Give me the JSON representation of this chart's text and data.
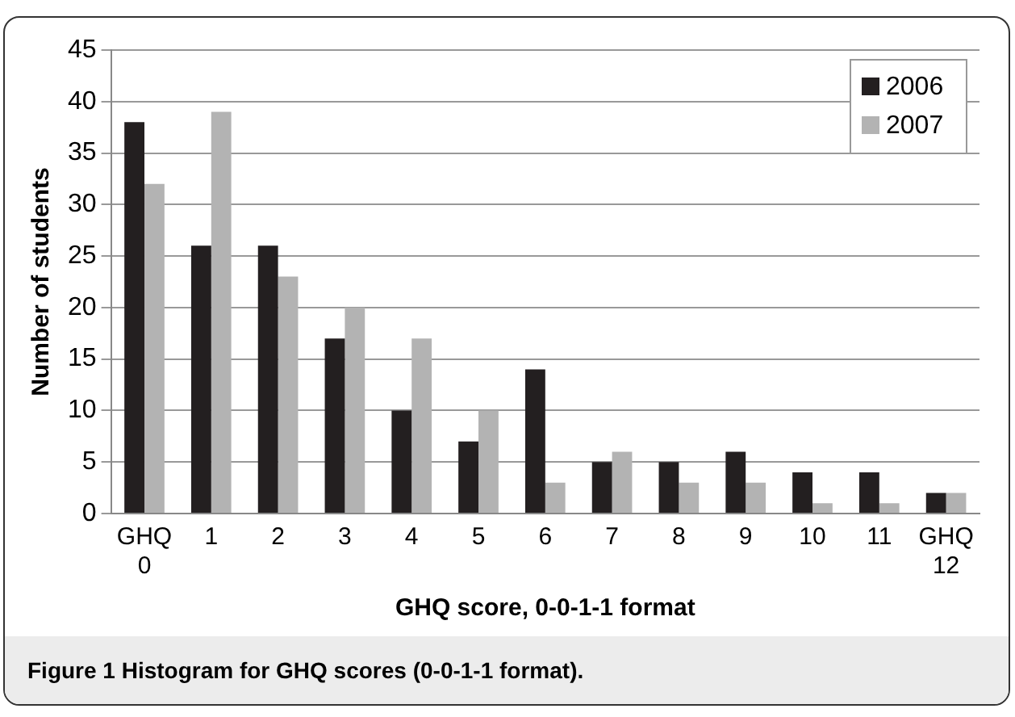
{
  "chart_data": {
    "type": "bar",
    "xlabel": "GHQ score, 0-0-1-1 format",
    "ylabel": "Number of students",
    "categories": [
      "GHQ 0",
      "1",
      "2",
      "3",
      "4",
      "5",
      "6",
      "7",
      "8",
      "9",
      "10",
      "11",
      "GHQ 12"
    ],
    "series": [
      {
        "name": "2006",
        "color": "#231f20",
        "values": [
          38,
          26,
          26,
          17,
          10,
          7,
          14,
          5,
          5,
          6,
          4,
          4,
          2
        ]
      },
      {
        "name": "2007",
        "color": "#b3b3b3",
        "values": [
          32,
          39,
          23,
          20,
          17,
          10,
          3,
          6,
          3,
          3,
          1,
          1,
          2
        ]
      }
    ],
    "ylim": [
      0,
      45
    ],
    "yticks": [
      0,
      5,
      10,
      15,
      20,
      25,
      30,
      35,
      40,
      45
    ],
    "grid": "y",
    "legend": "top right",
    "annotations": [
      "Figure 1 Histogram for GHQ scores (0-0-1-1 format)."
    ]
  }
}
